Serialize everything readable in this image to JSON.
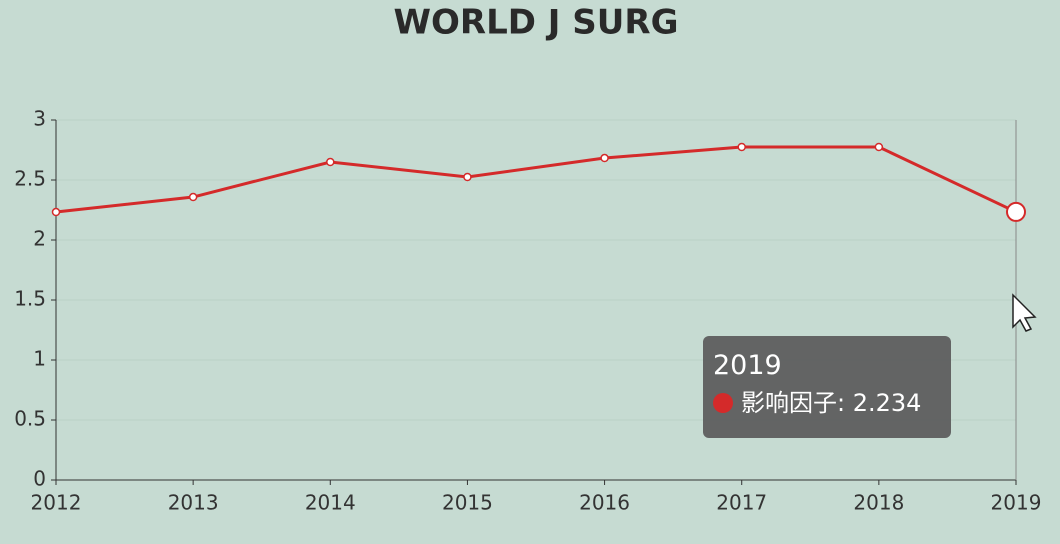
{
  "chart_data": {
    "type": "line",
    "title": "WORLD J SURG",
    "categories": [
      "2012",
      "2013",
      "2014",
      "2015",
      "2016",
      "2017",
      "2018",
      "2019"
    ],
    "series": [
      {
        "name": "影响因子",
        "color": "#d42a2a",
        "values": [
          2.233,
          2.358,
          2.65,
          2.525,
          2.683,
          2.775,
          2.775,
          2.234
        ]
      }
    ],
    "ylim": [
      0,
      3
    ],
    "yticks": [
      0,
      0.5,
      1,
      1.5,
      2,
      2.5,
      3
    ],
    "grid": true,
    "tooltip": {
      "text": "影响因子: 2.234"
    }
  }
}
